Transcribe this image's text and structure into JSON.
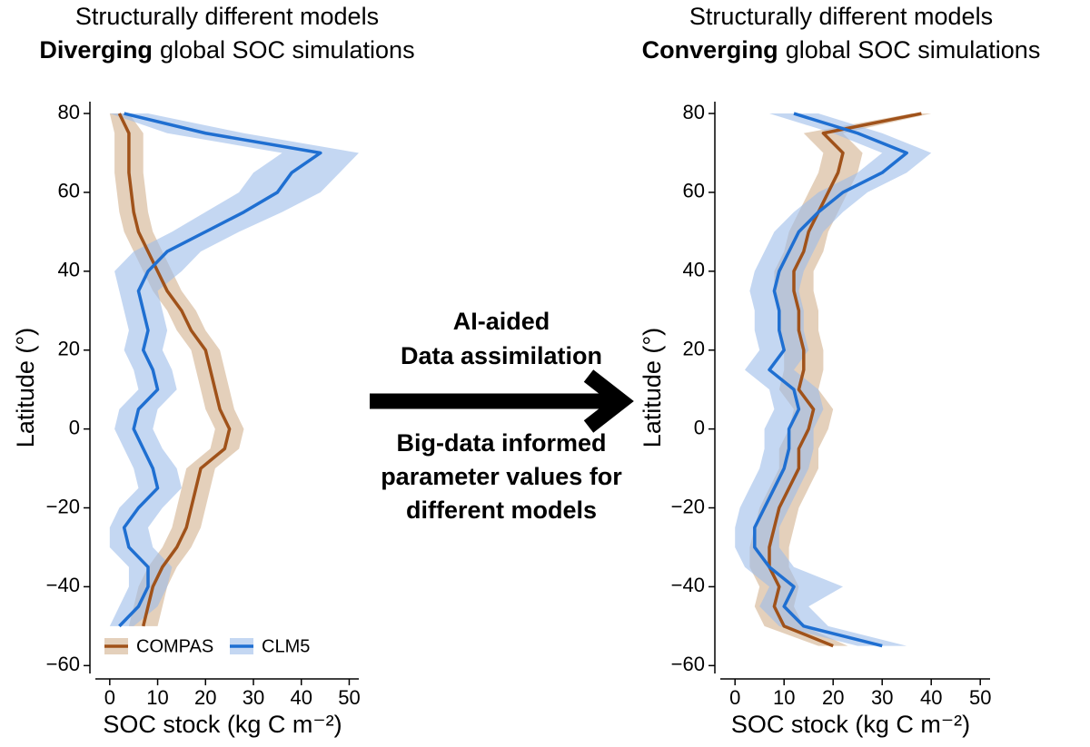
{
  "chart_data": [
    {
      "type": "line",
      "orientation": "horizontal",
      "title": "Structurally different models",
      "subtitle_bold": "Diverging",
      "subtitle": "global SOC simulations",
      "x_label": "SOC stock (kg C m⁻²)",
      "y_label": "Latitude (°)",
      "y": [
        -50,
        -45,
        -40,
        -35,
        -30,
        -25,
        -20,
        -15,
        -10,
        -5,
        0,
        5,
        10,
        15,
        20,
        25,
        30,
        35,
        40,
        45,
        50,
        55,
        60,
        65,
        70,
        75,
        80
      ],
      "series": [
        {
          "name": "COMPAS",
          "color": "#a0521a",
          "band_color": "#d2b08e",
          "values": [
            7,
            8,
            9,
            11,
            14,
            16,
            17,
            18,
            19,
            24,
            25,
            23,
            22,
            21,
            20,
            17,
            15,
            12,
            10,
            8,
            6,
            5,
            4.5,
            4,
            4,
            4,
            2
          ],
          "lower": [
            4,
            5,
            6,
            8,
            11,
            13,
            14,
            15,
            16,
            21,
            22,
            20,
            19,
            18,
            17,
            14,
            12,
            9,
            7,
            5,
            3,
            2,
            1.5,
            1,
            1,
            1,
            0
          ],
          "upper": [
            10,
            11,
            12,
            14,
            17,
            19,
            20,
            21,
            22,
            27,
            28,
            26,
            25,
            24,
            23,
            20,
            18,
            15,
            13,
            11,
            9,
            8,
            7.5,
            7,
            7,
            7,
            4
          ]
        },
        {
          "name": "CLM5",
          "color": "#1f6fd1",
          "band_color": "#9dbde9",
          "values": [
            2,
            6,
            8,
            8,
            4,
            3,
            6,
            10,
            9,
            7,
            5,
            6,
            10,
            9,
            7,
            8,
            7,
            6,
            8,
            12,
            20,
            28,
            35,
            38,
            44,
            20,
            3
          ],
          "lower": [
            0,
            2,
            4,
            4,
            0,
            0,
            2,
            6,
            5,
            3,
            1,
            2,
            6,
            5,
            3,
            4,
            3,
            2,
            1,
            5,
            13,
            20,
            27,
            30,
            36,
            12,
            0
          ],
          "upper": [
            5,
            10,
            12,
            13,
            9,
            8,
            11,
            15,
            14,
            11,
            9,
            10,
            14,
            13,
            11,
            12,
            11,
            10,
            15,
            19,
            27,
            36,
            44,
            48,
            52,
            28,
            8
          ]
        }
      ],
      "xlim": [
        -3,
        52
      ],
      "xticks": [
        0,
        10,
        20,
        30,
        40,
        50
      ],
      "ylim": [
        -62,
        83
      ],
      "yticks": [
        {
          "value": -60,
          "label": "−60"
        },
        {
          "value": -40,
          "label": "−40"
        },
        {
          "value": -20,
          "label": "−20"
        },
        0,
        20,
        40,
        60,
        80
      ],
      "legend": "lower left"
    },
    {
      "type": "line",
      "orientation": "horizontal",
      "title": "Structurally different models",
      "subtitle_bold": "Converging",
      "subtitle": "global SOC simulations",
      "x_label": "SOC stock (kg C m⁻²)",
      "y_label": "Latitude (°)",
      "y": [
        -55,
        -50,
        -45,
        -40,
        -35,
        -30,
        -25,
        -20,
        -15,
        -10,
        -5,
        0,
        5,
        10,
        15,
        20,
        25,
        30,
        35,
        40,
        45,
        50,
        55,
        60,
        65,
        70,
        75,
        80
      ],
      "series": [
        {
          "name": "COMPAS",
          "color": "#a0521a",
          "band_color": "#d2b08e",
          "values": [
            20,
            10,
            8,
            9,
            7,
            7,
            8,
            9,
            11,
            13,
            13,
            15,
            16,
            13,
            14,
            14,
            13,
            13,
            12,
            12,
            14,
            15,
            17,
            19,
            21,
            22,
            18,
            38
          ],
          "lower": [
            17,
            6,
            4,
            5,
            3,
            3,
            4,
            5,
            7,
            9,
            9,
            11,
            12,
            9,
            10,
            10,
            9,
            9,
            8,
            8,
            10,
            11,
            13,
            15,
            17,
            18,
            14,
            36
          ],
          "upper": [
            23,
            14,
            12,
            13,
            11,
            11,
            12,
            13,
            15,
            17,
            17,
            19,
            20,
            17,
            18,
            18,
            17,
            17,
            16,
            16,
            18,
            19,
            21,
            23,
            25,
            26,
            22,
            40
          ]
        },
        {
          "name": "CLM5",
          "color": "#1f6fd1",
          "band_color": "#9dbde9",
          "values": [
            30,
            14,
            10,
            12,
            7,
            4,
            4,
            6,
            8,
            10,
            11,
            11,
            13,
            12,
            7,
            10,
            9,
            9,
            8,
            9,
            11,
            13,
            17,
            22,
            30,
            35,
            25,
            12
          ],
          "lower": [
            25,
            9,
            5,
            7,
            2,
            0,
            0,
            1,
            3,
            5,
            6,
            6,
            8,
            7,
            2,
            5,
            4,
            4,
            3,
            4,
            6,
            8,
            12,
            17,
            25,
            30,
            20,
            7
          ],
          "upper": [
            35,
            19,
            15,
            22,
            12,
            9,
            9,
            11,
            13,
            15,
            16,
            16,
            18,
            17,
            12,
            15,
            14,
            14,
            13,
            14,
            16,
            18,
            22,
            27,
            35,
            40,
            30,
            17
          ]
        }
      ],
      "xlim": [
        -3,
        52
      ],
      "xticks": [
        0,
        10,
        20,
        30,
        40,
        50
      ],
      "ylim": [
        -62,
        83
      ],
      "yticks": [
        {
          "value": -60,
          "label": "−60"
        },
        {
          "value": -40,
          "label": "−40"
        },
        {
          "value": -20,
          "label": "−20"
        },
        0,
        20,
        40,
        60,
        80
      ]
    }
  ],
  "arrow": {
    "top": [
      "AI-aided",
      "Data assimilation"
    ],
    "bottom": [
      "Big-data informed",
      "parameter values for",
      "different models"
    ]
  }
}
